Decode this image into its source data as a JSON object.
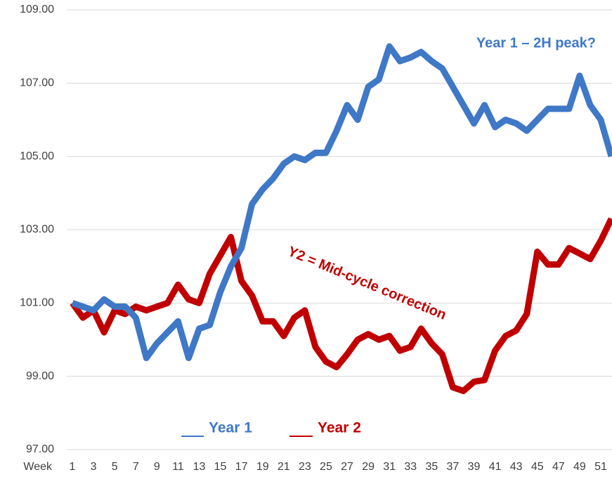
{
  "chart_data": {
    "type": "line",
    "x_label": "Week",
    "categories": [
      "1",
      null,
      "3",
      null,
      "5",
      null,
      "7",
      null,
      "9",
      null,
      "11",
      null,
      "13",
      null,
      "15",
      null,
      "17",
      null,
      "19",
      null,
      "21",
      null,
      "23",
      null,
      "25",
      null,
      "27",
      null,
      "29",
      null,
      "31",
      null,
      "33",
      null,
      "35",
      null,
      "37",
      null,
      "39",
      null,
      "41",
      null,
      "43",
      null,
      "45",
      null,
      "47",
      null,
      "49",
      null,
      "51",
      null
    ],
    "series": [
      {
        "name": "Year 1",
        "color": "#3f78c6",
        "values": [
          101.0,
          100.9,
          100.8,
          101.1,
          100.9,
          100.9,
          100.6,
          99.5,
          99.9,
          100.2,
          100.5,
          99.5,
          100.3,
          100.4,
          101.3,
          102.0,
          102.5,
          103.7,
          104.1,
          104.4,
          104.8,
          105.0,
          104.9,
          105.1,
          105.1,
          105.7,
          106.4,
          106.0,
          106.9,
          107.1,
          108.0,
          107.6,
          107.7,
          107.85,
          107.6,
          107.4,
          106.9,
          106.4,
          105.9,
          106.4,
          105.8,
          106.0,
          105.9,
          105.7,
          106.0,
          106.3,
          106.3,
          106.3,
          107.2,
          106.4,
          106.0,
          105.0
        ]
      },
      {
        "name": "Year 2",
        "color": "#c00000",
        "values": [
          101.0,
          100.6,
          100.8,
          100.2,
          100.8,
          100.7,
          100.9,
          100.8,
          100.9,
          101.0,
          101.5,
          101.1,
          101.0,
          101.8,
          102.3,
          102.8,
          101.6,
          101.2,
          100.5,
          100.5,
          100.1,
          100.6,
          100.8,
          99.8,
          99.4,
          99.25,
          99.6,
          100.0,
          100.15,
          100.0,
          100.1,
          99.7,
          99.8,
          100.3,
          99.9,
          99.6,
          98.7,
          98.6,
          98.85,
          98.9,
          99.7,
          100.1,
          100.25,
          100.7,
          102.4,
          102.05,
          102.05,
          102.5,
          102.35,
          102.2,
          102.7,
          103.3
        ]
      }
    ],
    "annotations": [
      "Year 1 – 2H peak?",
      "Y2 = Mid-cycle correction"
    ],
    "ylim": [
      97,
      109
    ],
    "yticks": [
      {
        "value": 97,
        "label": "97.00"
      },
      {
        "value": 99,
        "label": "99.00"
      },
      {
        "value": 101,
        "label": "101.00"
      },
      {
        "value": 103,
        "label": "103.00"
      },
      {
        "value": 105,
        "label": "105.00"
      },
      {
        "value": 107,
        "label": "107.00"
      },
      {
        "value": 109,
        "label": "109.00"
      }
    ],
    "grid": true
  }
}
